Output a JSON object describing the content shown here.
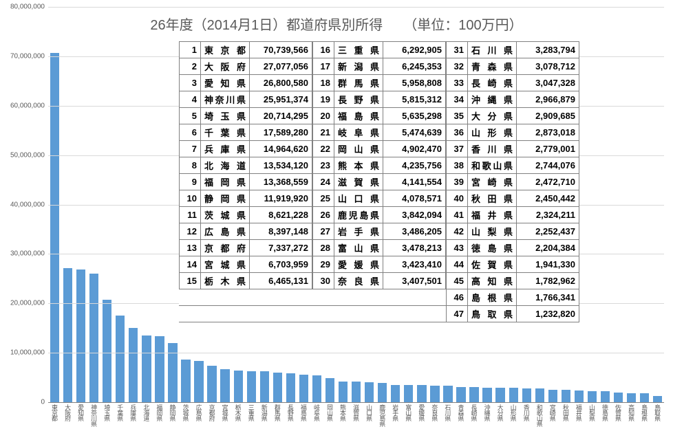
{
  "title": "26年度（2014月1日）都道府県別所得　　（単位：100万円）",
  "chart": {
    "type": "bar",
    "ylim": [
      0,
      80000000
    ],
    "ytick_step": 10000000,
    "bar_color": "#5b9bd5",
    "grid_color": "#d9d9d9",
    "axis_color": "#808080",
    "background_color": "#ffffff",
    "title_fontsize": 20,
    "label_fontsize": 10
  },
  "prefectures": [
    {
      "rank": 1,
      "name": "東京都",
      "display": "東 京 都",
      "value": 70739566
    },
    {
      "rank": 2,
      "name": "大阪府",
      "display": "大 阪 府",
      "value": 27077056
    },
    {
      "rank": 3,
      "name": "愛知県",
      "display": "愛 知 県",
      "value": 26800580
    },
    {
      "rank": 4,
      "name": "神奈川県",
      "display": "神奈川県",
      "value": 25951374
    },
    {
      "rank": 5,
      "name": "埼玉県",
      "display": "埼 玉 県",
      "value": 20714295
    },
    {
      "rank": 6,
      "name": "千葉県",
      "display": "千 葉 県",
      "value": 17589280
    },
    {
      "rank": 7,
      "name": "兵庫県",
      "display": "兵 庫 県",
      "value": 14964620
    },
    {
      "rank": 8,
      "name": "北海道",
      "display": "北 海 道",
      "value": 13534120
    },
    {
      "rank": 9,
      "name": "福岡県",
      "display": "福 岡 県",
      "value": 13368559
    },
    {
      "rank": 10,
      "name": "静岡県",
      "display": "静 岡 県",
      "value": 11919920
    },
    {
      "rank": 11,
      "name": "茨城県",
      "display": "茨 城 県",
      "value": 8621228
    },
    {
      "rank": 12,
      "name": "広島県",
      "display": "広 島 県",
      "value": 8397148
    },
    {
      "rank": 13,
      "name": "京都府",
      "display": "京 都 府",
      "value": 7337272
    },
    {
      "rank": 14,
      "name": "宮城県",
      "display": "宮 城 県",
      "value": 6703959
    },
    {
      "rank": 15,
      "name": "栃木県",
      "display": "栃 木 県",
      "value": 6465131
    },
    {
      "rank": 16,
      "name": "三重県",
      "display": "三 重 県",
      "value": 6292905
    },
    {
      "rank": 17,
      "name": "新潟県",
      "display": "新 潟 県",
      "value": 6245353
    },
    {
      "rank": 18,
      "name": "群馬県",
      "display": "群 馬 県",
      "value": 5958808
    },
    {
      "rank": 19,
      "name": "長野県",
      "display": "長 野 県",
      "value": 5815312
    },
    {
      "rank": 20,
      "name": "福島県",
      "display": "福 島 県",
      "value": 5635298
    },
    {
      "rank": 21,
      "name": "岐阜県",
      "display": "岐 阜 県",
      "value": 5474639
    },
    {
      "rank": 22,
      "name": "岡山県",
      "display": "岡 山 県",
      "value": 4902470
    },
    {
      "rank": 23,
      "name": "熊本県",
      "display": "熊 本 県",
      "value": 4235756
    },
    {
      "rank": 24,
      "name": "滋賀県",
      "display": "滋 賀 県",
      "value": 4141554
    },
    {
      "rank": 25,
      "name": "山口県",
      "display": "山 口 県",
      "value": 4078571
    },
    {
      "rank": 26,
      "name": "鹿児島県",
      "display": "鹿児島県",
      "value": 3842094
    },
    {
      "rank": 27,
      "name": "岩手県",
      "display": "岩 手 県",
      "value": 3486205
    },
    {
      "rank": 28,
      "name": "富山県",
      "display": "富 山 県",
      "value": 3478213
    },
    {
      "rank": 29,
      "name": "愛媛県",
      "display": "愛 媛 県",
      "value": 3423410
    },
    {
      "rank": 30,
      "name": "奈良県",
      "display": "奈 良 県",
      "value": 3407501
    },
    {
      "rank": 31,
      "name": "石川県",
      "display": "石 川 県",
      "value": 3283794
    },
    {
      "rank": 32,
      "name": "青森県",
      "display": "青 森 県",
      "value": 3078712
    },
    {
      "rank": 33,
      "name": "長崎県",
      "display": "長 崎 県",
      "value": 3047328
    },
    {
      "rank": 34,
      "name": "沖縄県",
      "display": "沖 縄 県",
      "value": 2966879
    },
    {
      "rank": 35,
      "name": "大分県",
      "display": "大 分 県",
      "value": 2909685
    },
    {
      "rank": 36,
      "name": "山形県",
      "display": "山 形 県",
      "value": 2873018
    },
    {
      "rank": 37,
      "name": "香川県",
      "display": "香 川 県",
      "value": 2779001
    },
    {
      "rank": 38,
      "name": "和歌山県",
      "display": "和歌山県",
      "value": 2744076
    },
    {
      "rank": 39,
      "name": "宮崎県",
      "display": "宮 崎 県",
      "value": 2472710
    },
    {
      "rank": 40,
      "name": "秋田県",
      "display": "秋 田 県",
      "value": 2450442
    },
    {
      "rank": 41,
      "name": "福井県",
      "display": "福 井 県",
      "value": 2324211
    },
    {
      "rank": 42,
      "name": "山梨県",
      "display": "山 梨 県",
      "value": 2252437
    },
    {
      "rank": 43,
      "name": "徳島県",
      "display": "徳 島 県",
      "value": 2204384
    },
    {
      "rank": 44,
      "name": "佐賀県",
      "display": "佐 賀 県",
      "value": 1941330
    },
    {
      "rank": 45,
      "name": "高知県",
      "display": "高 知 県",
      "value": 1782962
    },
    {
      "rank": 46,
      "name": "島根県",
      "display": "島 根 県",
      "value": 1766341
    },
    {
      "rank": 47,
      "name": "鳥取県",
      "display": "鳥 取 県",
      "value": 1232820
    }
  ]
}
